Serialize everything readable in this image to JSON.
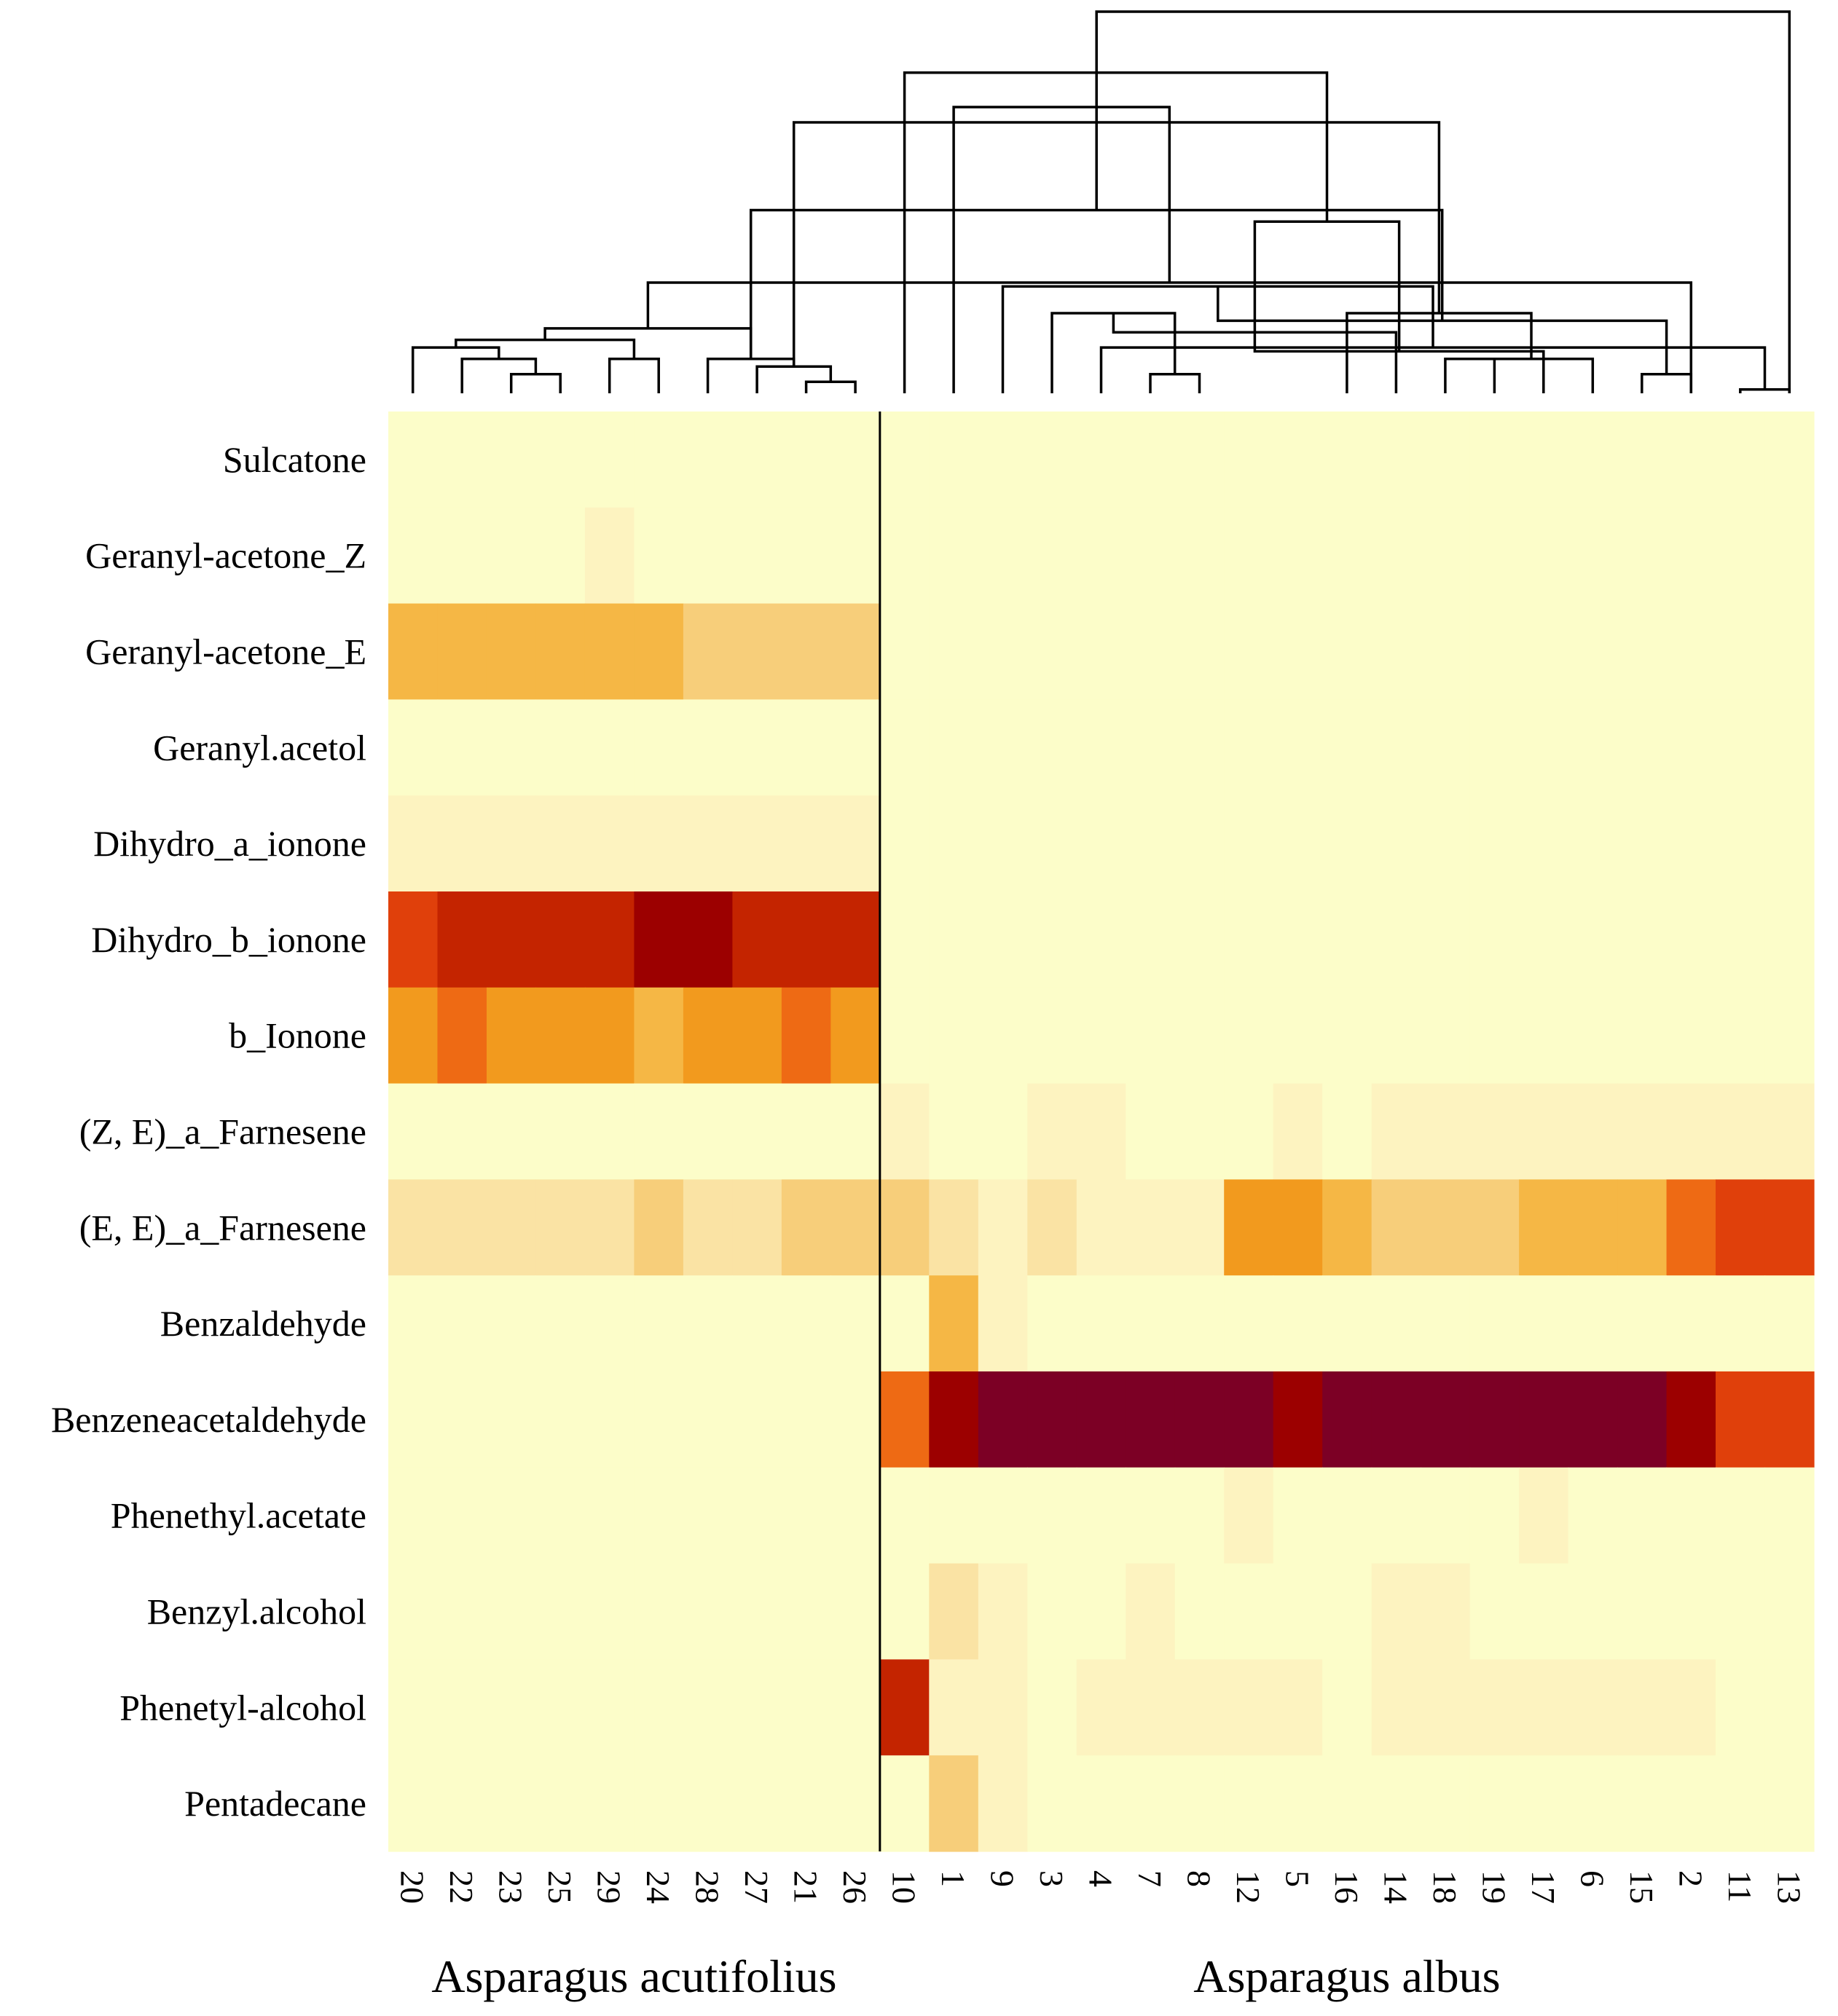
{
  "chart_data": {
    "type": "heatmap",
    "title": "",
    "colors": {
      "scale": [
        "#fcfdc9",
        "#fdf3c0",
        "#fae3a4",
        "#f7ce7a",
        "#f5b745",
        "#f29a1e",
        "#ee6a14",
        "#e0400b",
        "#c42400",
        "#9c0000",
        "#7c0025"
      ],
      "divider": "#000000",
      "dendrogram": "#000000"
    },
    "rows": [
      "Sulcatone",
      "Geranyl-acetone_Z",
      "Geranyl-acetone_E",
      "Geranyl.acetol",
      "Dihydro_a_ionone",
      "Dihydro_b_ionone",
      "b_Ionone",
      "(Z, E)_a_Farnesene",
      "(E, E)_a_Farnesene",
      "Benzaldehyde",
      "Benzeneacetaldehyde",
      "Phenethyl.acetate",
      "Benzyl.alcohol",
      "Phenetyl-alcohol",
      "Pentadecane"
    ],
    "columns": [
      "20",
      "22",
      "23",
      "25",
      "29",
      "24",
      "28",
      "27",
      "21",
      "26",
      "10",
      "1",
      "9",
      "3",
      "4",
      "7",
      "8",
      "12",
      "5",
      "16",
      "14",
      "18",
      "19",
      "17",
      "6",
      "15",
      "2",
      "11",
      "13"
    ],
    "groups": [
      {
        "label": "Asparagus acutifolius",
        "columns": [
          "20",
          "22",
          "23",
          "25",
          "29",
          "24",
          "28",
          "27",
          "21",
          "26"
        ]
      },
      {
        "label": "Asparagus albus",
        "columns": [
          "10",
          "1",
          "9",
          "3",
          "4",
          "7",
          "8",
          "12",
          "5",
          "16",
          "14",
          "18",
          "19",
          "17",
          "6",
          "15",
          "2",
          "11",
          "13"
        ]
      }
    ],
    "values": [
      [
        0,
        0,
        0,
        0,
        0,
        0,
        0,
        0,
        0,
        0,
        0,
        0,
        0,
        0,
        0,
        0,
        0,
        0,
        0,
        0,
        0,
        0,
        0,
        0,
        0,
        0,
        0,
        0,
        0
      ],
      [
        0,
        0,
        0,
        0,
        1,
        0,
        0,
        0,
        0,
        0,
        0,
        0,
        0,
        0,
        0,
        0,
        0,
        0,
        0,
        0,
        0,
        0,
        0,
        0,
        0,
        0,
        0,
        0,
        0
      ],
      [
        4,
        4,
        4,
        4,
        4,
        4,
        3,
        3,
        3,
        3,
        0,
        0,
        0,
        0,
        0,
        0,
        0,
        0,
        0,
        0,
        0,
        0,
        0,
        0,
        0,
        0,
        0,
        0,
        0
      ],
      [
        0,
        0,
        0,
        0,
        0,
        0,
        0,
        0,
        0,
        0,
        0,
        0,
        0,
        0,
        0,
        0,
        0,
        0,
        0,
        0,
        0,
        0,
        0,
        0,
        0,
        0,
        0,
        0,
        0
      ],
      [
        1,
        1,
        1,
        1,
        1,
        1,
        1,
        1,
        1,
        1,
        0,
        0,
        0,
        0,
        0,
        0,
        0,
        0,
        0,
        0,
        0,
        0,
        0,
        0,
        0,
        0,
        0,
        0,
        0
      ],
      [
        7,
        8,
        8,
        8,
        8,
        9,
        9,
        8,
        8,
        8,
        0,
        0,
        0,
        0,
        0,
        0,
        0,
        0,
        0,
        0,
        0,
        0,
        0,
        0,
        0,
        0,
        0,
        0,
        0
      ],
      [
        5,
        6,
        5,
        5,
        5,
        4,
        5,
        5,
        6,
        5,
        0,
        0,
        0,
        0,
        0,
        0,
        0,
        0,
        0,
        0,
        0,
        0,
        0,
        0,
        0,
        0,
        0,
        0,
        0
      ],
      [
        0,
        0,
        0,
        0,
        0,
        0,
        0,
        0,
        0,
        0,
        1,
        0,
        0,
        1,
        1,
        0,
        0,
        0,
        1,
        0,
        1,
        1,
        1,
        1,
        1,
        1,
        1,
        1,
        1
      ],
      [
        2,
        2,
        2,
        2,
        2,
        3,
        2,
        2,
        3,
        3,
        3,
        2,
        1,
        2,
        1,
        1,
        1,
        5,
        5,
        4,
        3,
        3,
        3,
        4,
        4,
        4,
        6,
        7,
        7
      ],
      [
        0,
        0,
        0,
        0,
        0,
        0,
        0,
        0,
        0,
        0,
        0,
        4,
        1,
        0,
        0,
        0,
        0,
        0,
        0,
        0,
        0,
        0,
        0,
        0,
        0,
        0,
        0,
        0,
        0
      ],
      [
        0,
        0,
        0,
        0,
        0,
        0,
        0,
        0,
        0,
        0,
        6,
        9,
        10,
        10,
        10,
        10,
        10,
        10,
        9,
        10,
        10,
        10,
        10,
        10,
        10,
        10,
        9,
        7,
        7
      ],
      [
        0,
        0,
        0,
        0,
        0,
        0,
        0,
        0,
        0,
        0,
        0,
        0,
        0,
        0,
        0,
        0,
        0,
        1,
        0,
        0,
        0,
        0,
        0,
        1,
        0,
        0,
        0,
        0,
        0
      ],
      [
        0,
        0,
        0,
        0,
        0,
        0,
        0,
        0,
        0,
        0,
        0,
        2,
        1,
        0,
        0,
        1,
        0,
        0,
        0,
        0,
        1,
        1,
        0,
        0,
        0,
        0,
        0,
        0,
        0
      ],
      [
        0,
        0,
        0,
        0,
        0,
        0,
        0,
        0,
        0,
        0,
        8,
        1,
        1,
        0,
        1,
        1,
        1,
        1,
        1,
        0,
        1,
        1,
        1,
        1,
        1,
        1,
        1,
        0,
        0
      ],
      [
        0,
        0,
        0,
        0,
        0,
        0,
        0,
        0,
        0,
        0,
        0,
        3,
        1,
        0,
        0,
        0,
        0,
        0,
        0,
        0,
        0,
        0,
        0,
        0,
        0,
        0,
        0,
        0,
        0
      ]
    ],
    "value_scale": [
      0,
      10
    ],
    "dendrogram_merges": [
      [
        2,
        3,
        0.05
      ],
      [
        1,
        29,
        0.09
      ],
      [
        4,
        5,
        0.09
      ],
      [
        0,
        30,
        0.12
      ],
      [
        31,
        32,
        0.14
      ],
      [
        8,
        9,
        0.03
      ],
      [
        7,
        34,
        0.07
      ],
      [
        6,
        35,
        0.09
      ],
      [
        33,
        36,
        0.17
      ],
      [
        27,
        28,
        0.01
      ],
      [
        15,
        16,
        0.05
      ],
      [
        14,
        38,
        0.12
      ],
      [
        13,
        39,
        0.21
      ],
      [
        12,
        40,
        0.28
      ],
      [
        21,
        22,
        0.09
      ],
      [
        20,
        41,
        0.16
      ],
      [
        25,
        26,
        0.05
      ],
      [
        24,
        43,
        0.09
      ],
      [
        23,
        44,
        0.11
      ],
      [
        42,
        45,
        0.19
      ],
      [
        19,
        46,
        0.21
      ],
      [
        26,
        37,
        0.29
      ],
      [
        44,
        47,
        0.45
      ],
      [
        36,
        48,
        0.48
      ],
      [
        35,
        49,
        0.71
      ],
      [
        11,
        50,
        0.75
      ],
      [
        10,
        51,
        0.84
      ],
      [
        28,
        52,
        1.0
      ]
    ]
  }
}
